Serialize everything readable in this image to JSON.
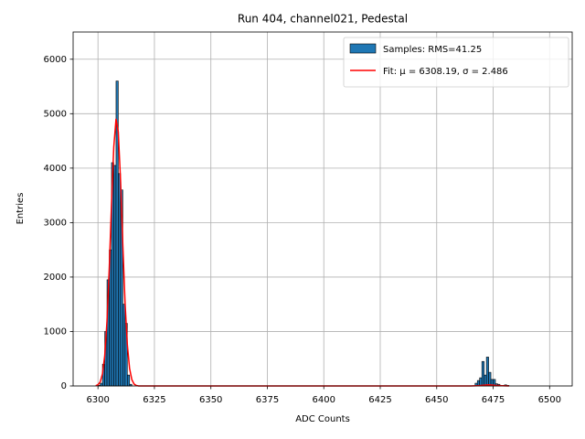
{
  "chart_data": {
    "type": "histogram",
    "title": "Run 404, channel021, Pedestal",
    "xlabel": "ADC Counts",
    "ylabel": "Entries",
    "bins": [
      6300,
      6301,
      6302,
      6303,
      6304,
      6305,
      6306,
      6307,
      6308,
      6309,
      6310,
      6311,
      6312,
      6313,
      6314,
      6315,
      6467,
      6468,
      6469,
      6470,
      6471,
      6472,
      6473,
      6474,
      6475,
      6476,
      6477,
      6478,
      6479,
      6480,
      6481,
      6482
    ],
    "counts": [
      10,
      50,
      400,
      1000,
      1950,
      2500,
      4100,
      4050,
      5600,
      3900,
      3600,
      1500,
      1150,
      200,
      30,
      0,
      50,
      100,
      150,
      450,
      200,
      530,
      250,
      120,
      120,
      40,
      30,
      10,
      10,
      20,
      10
    ],
    "hist_name": "Samples: RMS=41.25",
    "hist_color": "#1f77b4",
    "edge_color": "#000000",
    "fit": {
      "name": "Fit: μ = 6308.19, σ = 2.486",
      "color": "#ff0000",
      "x": [
        6299,
        6300,
        6301,
        6302,
        6303,
        6304,
        6305,
        6306,
        6307,
        6308,
        6309,
        6310,
        6311,
        6312,
        6313,
        6314,
        6315,
        6316,
        6317,
        6318,
        6465,
        6468,
        6470,
        6473,
        6476,
        6479,
        6482
      ],
      "values": [
        5,
        22,
        75,
        222,
        556,
        1189,
        2159,
        3337,
        4387,
        4906,
        4666,
        3775,
        2597,
        1520,
        760,
        321,
        115,
        35,
        9,
        0,
        0,
        5,
        10,
        20,
        10,
        5,
        0
      ]
    },
    "xlim": [
      6289,
      6510
    ],
    "ylim": [
      0,
      6500
    ],
    "xticks": [
      6300,
      6325,
      6350,
      6375,
      6400,
      6425,
      6450,
      6475,
      6500
    ],
    "yticks": [
      0,
      1000,
      2000,
      3000,
      4000,
      5000,
      6000
    ],
    "grid": true,
    "legend": "upper right"
  }
}
